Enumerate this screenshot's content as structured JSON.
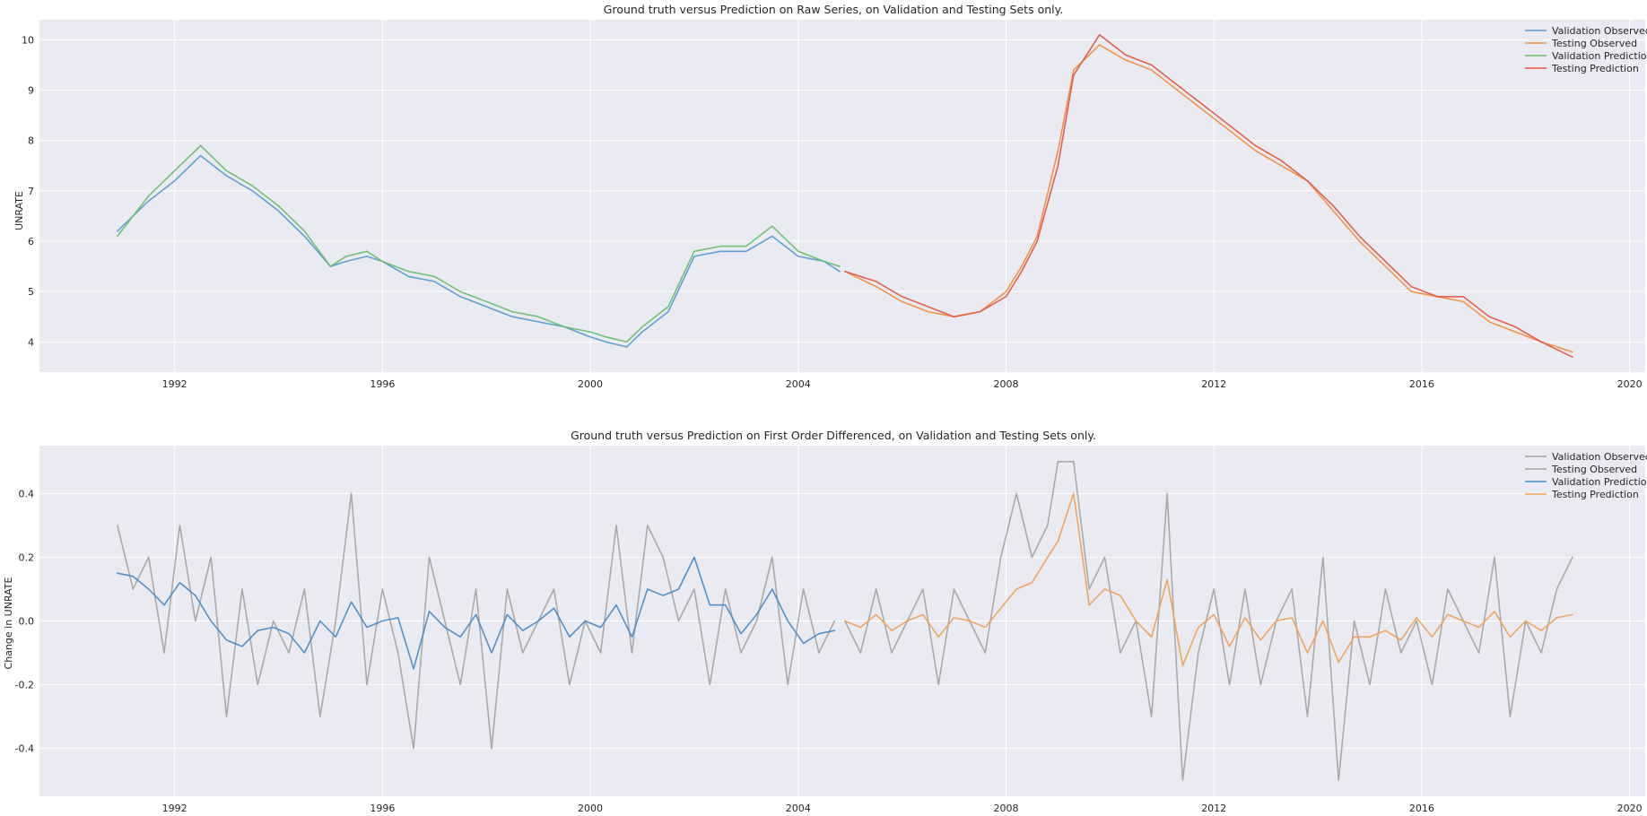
{
  "chart_data": [
    {
      "type": "line",
      "title": "Ground truth versus Prediction on Raw Series, on Validation and Testing Sets only.",
      "xlabel": "",
      "ylabel": "UNRATE",
      "xlim": [
        1989.4,
        2020.3
      ],
      "ylim": [
        3.4,
        10.4
      ],
      "xticks": [
        1992,
        1996,
        2000,
        2004,
        2008,
        2012,
        2016,
        2020
      ],
      "yticks": [
        4,
        5,
        6,
        7,
        8,
        9,
        10
      ],
      "grid": true,
      "legend_position": "top-right",
      "series": [
        {
          "name": "Validation Observed",
          "color": "#5a9bd4",
          "x": [
            1990.9,
            1991.5,
            1992.0,
            1992.5,
            1993.0,
            1993.5,
            1994.0,
            1994.5,
            1995.0,
            1995.3,
            1995.7,
            1996.0,
            1996.5,
            1997.0,
            1997.5,
            1998.0,
            1998.5,
            1999.0,
            1999.5,
            2000.0,
            2000.3,
            2000.7,
            2001.0,
            2001.5,
            2002.0,
            2002.5,
            2003.0,
            2003.5,
            2004.0,
            2004.5,
            2004.8
          ],
          "y": [
            6.2,
            6.8,
            7.2,
            7.7,
            7.3,
            7.0,
            6.6,
            6.1,
            5.5,
            5.6,
            5.7,
            5.6,
            5.3,
            5.2,
            4.9,
            4.7,
            4.5,
            4.4,
            4.3,
            4.1,
            4.0,
            3.9,
            4.2,
            4.6,
            5.7,
            5.8,
            5.8,
            6.1,
            5.7,
            5.6,
            5.4
          ]
        },
        {
          "name": "Testing Observed",
          "color": "#f28e3b",
          "x": [
            2004.9,
            2005.5,
            2006.0,
            2006.5,
            2007.0,
            2007.5,
            2008.0,
            2008.3,
            2008.6,
            2009.0,
            2009.3,
            2009.8,
            2010.3,
            2010.8,
            2011.3,
            2011.8,
            2012.3,
            2012.8,
            2013.3,
            2013.8,
            2014.3,
            2014.8,
            2015.3,
            2015.8,
            2016.3,
            2016.8,
            2017.3,
            2017.8,
            2018.3,
            2018.9
          ],
          "y": [
            5.4,
            5.1,
            4.8,
            4.6,
            4.5,
            4.6,
            5.0,
            5.5,
            6.1,
            7.8,
            9.4,
            9.9,
            9.6,
            9.4,
            9.0,
            8.6,
            8.2,
            7.8,
            7.5,
            7.2,
            6.6,
            6.0,
            5.5,
            5.0,
            4.9,
            4.8,
            4.4,
            4.2,
            4.0,
            3.8
          ]
        },
        {
          "name": "Validation Prediction",
          "color": "#6abf6e",
          "x": [
            1990.9,
            1991.5,
            1992.0,
            1992.5,
            1993.0,
            1993.5,
            1994.0,
            1994.5,
            1995.0,
            1995.3,
            1995.7,
            1996.0,
            1996.5,
            1997.0,
            1997.5,
            1998.0,
            1998.5,
            1999.0,
            1999.5,
            2000.0,
            2000.3,
            2000.7,
            2001.0,
            2001.5,
            2002.0,
            2002.5,
            2003.0,
            2003.5,
            2004.0,
            2004.5,
            2004.8
          ],
          "y": [
            6.1,
            6.9,
            7.4,
            7.9,
            7.4,
            7.1,
            6.7,
            6.2,
            5.5,
            5.7,
            5.8,
            5.6,
            5.4,
            5.3,
            5.0,
            4.8,
            4.6,
            4.5,
            4.3,
            4.2,
            4.1,
            4.0,
            4.3,
            4.7,
            5.8,
            5.9,
            5.9,
            6.3,
            5.8,
            5.6,
            5.5
          ]
        },
        {
          "name": "Testing Prediction",
          "color": "#e05a44",
          "x": [
            2004.9,
            2005.5,
            2006.0,
            2006.5,
            2007.0,
            2007.5,
            2008.0,
            2008.3,
            2008.6,
            2009.0,
            2009.3,
            2009.8,
            2010.3,
            2010.8,
            2011.3,
            2011.8,
            2012.3,
            2012.8,
            2013.3,
            2013.8,
            2014.3,
            2014.8,
            2015.3,
            2015.8,
            2016.3,
            2016.8,
            2017.3,
            2017.8,
            2018.3,
            2018.9
          ],
          "y": [
            5.4,
            5.2,
            4.9,
            4.7,
            4.5,
            4.6,
            4.9,
            5.4,
            6.0,
            7.5,
            9.3,
            10.1,
            9.7,
            9.5,
            9.1,
            8.7,
            8.3,
            7.9,
            7.6,
            7.2,
            6.7,
            6.1,
            5.6,
            5.1,
            4.9,
            4.9,
            4.5,
            4.3,
            4.0,
            3.7
          ]
        }
      ]
    },
    {
      "type": "line",
      "title": "Ground truth versus Prediction on First Order Differenced, on Validation and Testing Sets only.",
      "xlabel": "",
      "ylabel": "Change in UNRATE",
      "xlim": [
        1989.4,
        2020.3
      ],
      "ylim": [
        -0.55,
        0.55
      ],
      "xticks": [
        1992,
        1996,
        2000,
        2004,
        2008,
        2012,
        2016,
        2020
      ],
      "yticks": [
        -0.4,
        -0.2,
        0.0,
        0.2,
        0.4
      ],
      "grid": true,
      "legend_position": "top-right",
      "series": [
        {
          "name": "Validation Observed",
          "color": "#a6a6a6",
          "x": [
            1990.9,
            1991.2,
            1991.5,
            1991.8,
            1992.1,
            1992.4,
            1992.7,
            1993.0,
            1993.3,
            1993.6,
            1993.9,
            1994.2,
            1994.5,
            1994.8,
            1995.1,
            1995.4,
            1995.7,
            1996.0,
            1996.3,
            1996.6,
            1996.9,
            1997.2,
            1997.5,
            1997.8,
            1998.1,
            1998.4,
            1998.7,
            1999.0,
            1999.3,
            1999.6,
            1999.9,
            2000.2,
            2000.5,
            2000.8,
            2001.1,
            2001.4,
            2001.7,
            2002.0,
            2002.3,
            2002.6,
            2002.9,
            2003.2,
            2003.5,
            2003.8,
            2004.1,
            2004.4,
            2004.7
          ],
          "y": [
            0.3,
            0.1,
            0.2,
            -0.1,
            0.3,
            0.0,
            0.2,
            -0.3,
            0.1,
            -0.2,
            0.0,
            -0.1,
            0.1,
            -0.3,
            0.0,
            0.4,
            -0.2,
            0.1,
            -0.1,
            -0.4,
            0.2,
            0.0,
            -0.2,
            0.1,
            -0.4,
            0.1,
            -0.1,
            0.0,
            0.1,
            -0.2,
            0.0,
            -0.1,
            0.3,
            -0.1,
            0.3,
            0.2,
            0.0,
            0.1,
            -0.2,
            0.1,
            -0.1,
            0.0,
            0.2,
            -0.2,
            0.1,
            -0.1,
            0.0
          ]
        },
        {
          "name": "Testing Observed",
          "color": "#a6a6a6",
          "x": [
            2004.9,
            2005.2,
            2005.5,
            2005.8,
            2006.1,
            2006.4,
            2006.7,
            2007.0,
            2007.3,
            2007.6,
            2007.9,
            2008.2,
            2008.5,
            2008.8,
            2009.0,
            2009.3,
            2009.6,
            2009.9,
            2010.2,
            2010.5,
            2010.8,
            2011.1,
            2011.4,
            2011.7,
            2012.0,
            2012.3,
            2012.6,
            2012.9,
            2013.2,
            2013.5,
            2013.8,
            2014.1,
            2014.4,
            2014.7,
            2015.0,
            2015.3,
            2015.6,
            2015.9,
            2016.2,
            2016.5,
            2016.8,
            2017.1,
            2017.4,
            2017.7,
            2018.0,
            2018.3,
            2018.6,
            2018.9
          ],
          "y": [
            0.0,
            -0.1,
            0.1,
            -0.1,
            0.0,
            0.1,
            -0.2,
            0.1,
            0.0,
            -0.1,
            0.2,
            0.4,
            0.2,
            0.3,
            0.5,
            0.5,
            0.1,
            0.2,
            -0.1,
            0.0,
            -0.3,
            0.4,
            -0.5,
            -0.1,
            0.1,
            -0.2,
            0.1,
            -0.2,
            0.0,
            0.1,
            -0.3,
            0.2,
            -0.5,
            0.0,
            -0.2,
            0.1,
            -0.1,
            0.0,
            -0.2,
            0.1,
            0.0,
            -0.1,
            0.2,
            -0.3,
            0.0,
            -0.1,
            0.1,
            0.2
          ]
        },
        {
          "name": "Validation Prediction",
          "color": "#4a8cc7",
          "x": [
            1990.9,
            1991.2,
            1991.5,
            1991.8,
            1992.1,
            1992.4,
            1992.7,
            1993.0,
            1993.3,
            1993.6,
            1993.9,
            1994.2,
            1994.5,
            1994.8,
            1995.1,
            1995.4,
            1995.7,
            1996.0,
            1996.3,
            1996.6,
            1996.9,
            1997.2,
            1997.5,
            1997.8,
            1998.1,
            1998.4,
            1998.7,
            1999.0,
            1999.3,
            1999.6,
            1999.9,
            2000.2,
            2000.5,
            2000.8,
            2001.1,
            2001.4,
            2001.7,
            2002.0,
            2002.3,
            2002.6,
            2002.9,
            2003.2,
            2003.5,
            2003.8,
            2004.1,
            2004.4,
            2004.7
          ],
          "y": [
            0.15,
            0.14,
            0.1,
            0.05,
            0.12,
            0.08,
            0.0,
            -0.06,
            -0.08,
            -0.03,
            -0.02,
            -0.04,
            -0.1,
            0.0,
            -0.05,
            0.06,
            -0.02,
            0.0,
            0.01,
            -0.15,
            0.03,
            -0.02,
            -0.05,
            0.02,
            -0.1,
            0.02,
            -0.03,
            0.0,
            0.04,
            -0.05,
            0.0,
            -0.02,
            0.05,
            -0.05,
            0.1,
            0.08,
            0.1,
            0.2,
            0.05,
            0.05,
            -0.04,
            0.02,
            0.1,
            0.0,
            -0.07,
            -0.04,
            -0.03
          ]
        },
        {
          "name": "Testing Prediction",
          "color": "#f2a154",
          "x": [
            2004.9,
            2005.2,
            2005.5,
            2005.8,
            2006.1,
            2006.4,
            2006.7,
            2007.0,
            2007.3,
            2007.6,
            2007.9,
            2008.2,
            2008.5,
            2008.8,
            2009.0,
            2009.3,
            2009.6,
            2009.9,
            2010.2,
            2010.5,
            2010.8,
            2011.1,
            2011.4,
            2011.7,
            2012.0,
            2012.3,
            2012.6,
            2012.9,
            2013.2,
            2013.5,
            2013.8,
            2014.1,
            2014.4,
            2014.7,
            2015.0,
            2015.3,
            2015.6,
            2015.9,
            2016.2,
            2016.5,
            2016.8,
            2017.1,
            2017.4,
            2017.7,
            2018.0,
            2018.3,
            2018.6,
            2018.9
          ],
          "y": [
            0.0,
            -0.02,
            0.02,
            -0.03,
            0.0,
            0.02,
            -0.05,
            0.01,
            0.0,
            -0.02,
            0.04,
            0.1,
            0.12,
            0.2,
            0.25,
            0.4,
            0.05,
            0.1,
            0.08,
            0.0,
            -0.05,
            0.13,
            -0.14,
            -0.02,
            0.02,
            -0.08,
            0.01,
            -0.06,
            0.0,
            0.01,
            -0.1,
            0.0,
            -0.13,
            -0.05,
            -0.05,
            -0.03,
            -0.06,
            0.01,
            -0.05,
            0.02,
            0.0,
            -0.02,
            0.03,
            -0.05,
            0.0,
            -0.03,
            0.01,
            0.02
          ]
        }
      ]
    }
  ]
}
